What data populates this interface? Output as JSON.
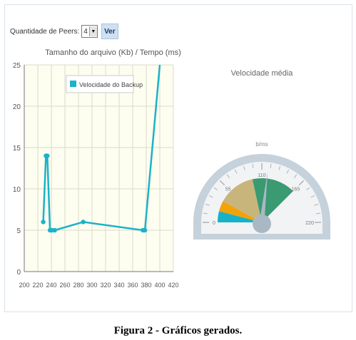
{
  "controls": {
    "peers_label": "Quantidade de Peers:",
    "peers_value": "4",
    "view_button": "Ver"
  },
  "chart_data": [
    {
      "type": "line",
      "title": "Tamanho do arquivo (Kb) / Tempo (ms)",
      "legend": "Velocidade do Backup",
      "legend_position": "top-center",
      "grid": true,
      "xlim": [
        200,
        420
      ],
      "ylim": [
        0,
        25
      ],
      "x_ticks": [
        200,
        220,
        240,
        260,
        280,
        300,
        320,
        340,
        360,
        380,
        400,
        420
      ],
      "y_ticks": [
        0,
        5,
        10,
        15,
        20,
        25
      ],
      "series": [
        {
          "name": "Velocidade do Backup",
          "color": "#1ab3c7",
          "points": [
            [
              228,
              6
            ],
            [
              232,
              14
            ],
            [
              234,
              14
            ],
            [
              238,
              5
            ],
            [
              241,
              5
            ],
            [
              245,
              5
            ],
            [
              287,
              6
            ],
            [
              375,
              5
            ],
            [
              378,
              5
            ],
            [
              400,
              25
            ]
          ]
        }
      ]
    },
    {
      "type": "gauge",
      "title": "Velocidade média",
      "unit": "b/ms",
      "min": 0,
      "max": 220,
      "tick_labels": [
        "0",
        "55",
        "110",
        "165",
        "220"
      ],
      "value": 118,
      "bands": [
        {
          "from": 0,
          "to": 18,
          "color": "#17b2c6"
        },
        {
          "from": 18,
          "to": 35,
          "color": "#f2a20b"
        },
        {
          "from": 35,
          "to": 95,
          "color": "#c8b57c"
        },
        {
          "from": 95,
          "to": 165,
          "color": "#3a9a72"
        }
      ]
    }
  ],
  "caption": "Figura 2 - Gráficos gerados."
}
